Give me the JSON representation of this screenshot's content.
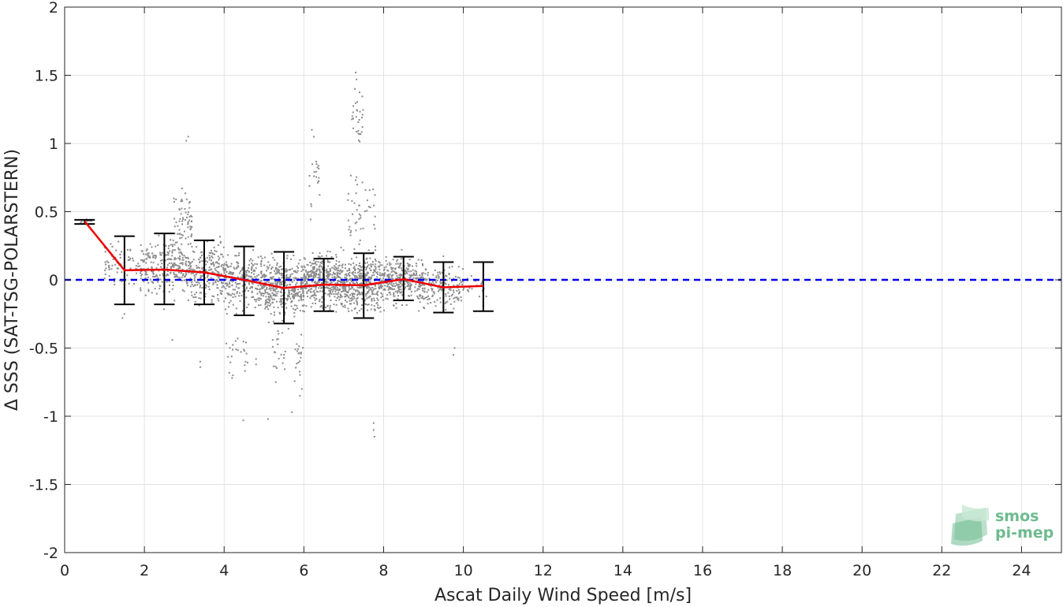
{
  "chart_data": {
    "type": "scatter",
    "xlabel": "Ascat Daily Wind Speed [m/s]",
    "ylabel": "Δ SSS (SAT-TSG-POLARSTERN)",
    "xlim": [
      0,
      25
    ],
    "ylim": [
      -2,
      2
    ],
    "xticks": [
      0,
      2,
      4,
      6,
      8,
      10,
      12,
      14,
      16,
      18,
      20,
      22,
      24
    ],
    "yticks": [
      -2,
      -1.5,
      -1,
      -0.5,
      0,
      0.5,
      1,
      1.5,
      2
    ],
    "ytick_labels": [
      "-2",
      "-1.5",
      "-1",
      "-0.5",
      "0",
      "0.5",
      "1",
      "1.5",
      "2"
    ],
    "grid": true,
    "zero_line": {
      "y": 0,
      "color": "#0000ee",
      "style": "dashed"
    },
    "scatter_color": "#8c8c8c",
    "mean_line_color": "#ee0000",
    "errorbar_color": "#000000",
    "binned_stats": {
      "x": [
        0.5,
        1.5,
        2.5,
        3.5,
        4.5,
        5.5,
        6.5,
        7.5,
        8.5,
        9.5,
        10.5
      ],
      "mean": [
        0.43,
        0.07,
        0.075,
        0.055,
        0.0,
        -0.06,
        -0.035,
        -0.04,
        0.005,
        -0.055,
        -0.045
      ],
      "lower": [
        0.41,
        -0.18,
        -0.18,
        -0.18,
        -0.26,
        -0.32,
        -0.23,
        -0.28,
        -0.15,
        -0.24,
        -0.23
      ],
      "upper": [
        0.44,
        0.32,
        0.34,
        0.29,
        0.245,
        0.205,
        0.155,
        0.195,
        0.17,
        0.13,
        0.13
      ]
    },
    "scatter_clusters": [
      {
        "x_range": [
          0.4,
          0.7
        ],
        "center": 0.43,
        "spread": 0.02,
        "n": 15
      },
      {
        "x_range": [
          1.0,
          1.9
        ],
        "center": 0.1,
        "spread": 0.12,
        "n": 70
      },
      {
        "x_range": [
          1.9,
          3.0
        ],
        "center": 0.1,
        "spread": 0.16,
        "n": 230
      },
      {
        "x_range": [
          2.7,
          3.2
        ],
        "center": 0.4,
        "spread": 0.18,
        "n": 70
      },
      {
        "x_range": [
          3.0,
          4.0
        ],
        "center": 0.06,
        "spread": 0.15,
        "n": 260
      },
      {
        "x_range": [
          4.0,
          5.0
        ],
        "center": 0.0,
        "spread": 0.15,
        "n": 260
      },
      {
        "x_range": [
          4.0,
          4.6
        ],
        "center": -0.55,
        "spread": 0.12,
        "n": 22
      },
      {
        "x_range": [
          5.0,
          6.0
        ],
        "center": -0.05,
        "spread": 0.15,
        "n": 380
      },
      {
        "x_range": [
          5.2,
          6.0
        ],
        "center": -0.55,
        "spread": 0.14,
        "n": 40
      },
      {
        "x_range": [
          6.0,
          7.0
        ],
        "center": 0.0,
        "spread": 0.14,
        "n": 430
      },
      {
        "x_range": [
          6.1,
          6.4
        ],
        "center": 0.75,
        "spread": 0.2,
        "n": 20
      },
      {
        "x_range": [
          7.0,
          8.0
        ],
        "center": -0.03,
        "spread": 0.14,
        "n": 400
      },
      {
        "x_range": [
          7.1,
          7.8
        ],
        "center": 0.45,
        "spread": 0.25,
        "n": 50
      },
      {
        "x_range": [
          7.2,
          7.5
        ],
        "center": 1.2,
        "spread": 0.17,
        "n": 30
      },
      {
        "x_range": [
          8.0,
          9.0
        ],
        "center": 0.0,
        "spread": 0.12,
        "n": 320
      },
      {
        "x_range": [
          9.0,
          10.0
        ],
        "center": -0.05,
        "spread": 0.11,
        "n": 160
      },
      {
        "x_range": [
          10.0,
          10.6
        ],
        "center": -0.05,
        "spread": 0.08,
        "n": 20
      }
    ],
    "scatter_outliers": [
      {
        "x": 3.1,
        "y": 1.05
      },
      {
        "x": 3.05,
        "y": 1.02
      },
      {
        "x": 7.3,
        "y": 1.52
      },
      {
        "x": 7.32,
        "y": 1.47
      },
      {
        "x": 7.28,
        "y": 1.4
      },
      {
        "x": 6.2,
        "y": 1.1
      },
      {
        "x": 6.25,
        "y": 1.05
      },
      {
        "x": 4.48,
        "y": -1.03
      },
      {
        "x": 5.1,
        "y": -1.02
      },
      {
        "x": 5.7,
        "y": -0.97
      },
      {
        "x": 7.75,
        "y": -1.05
      },
      {
        "x": 7.75,
        "y": -1.1
      },
      {
        "x": 7.77,
        "y": -1.15
      },
      {
        "x": 3.4,
        "y": -0.64
      },
      {
        "x": 3.4,
        "y": -0.6
      },
      {
        "x": 2.7,
        "y": -0.44
      },
      {
        "x": 4.2,
        "y": -0.72
      },
      {
        "x": 4.22,
        "y": -0.7
      },
      {
        "x": 4.8,
        "y": -0.62
      },
      {
        "x": 4.8,
        "y": -0.58
      },
      {
        "x": 5.9,
        "y": -0.85
      },
      {
        "x": 5.95,
        "y": -0.8
      },
      {
        "x": 9.75,
        "y": -0.55
      },
      {
        "x": 9.78,
        "y": -0.5
      },
      {
        "x": 1.45,
        "y": -0.28
      },
      {
        "x": 1.5,
        "y": -0.25
      }
    ]
  },
  "logo": {
    "line1": "smos",
    "line2": "pi-mep"
  }
}
